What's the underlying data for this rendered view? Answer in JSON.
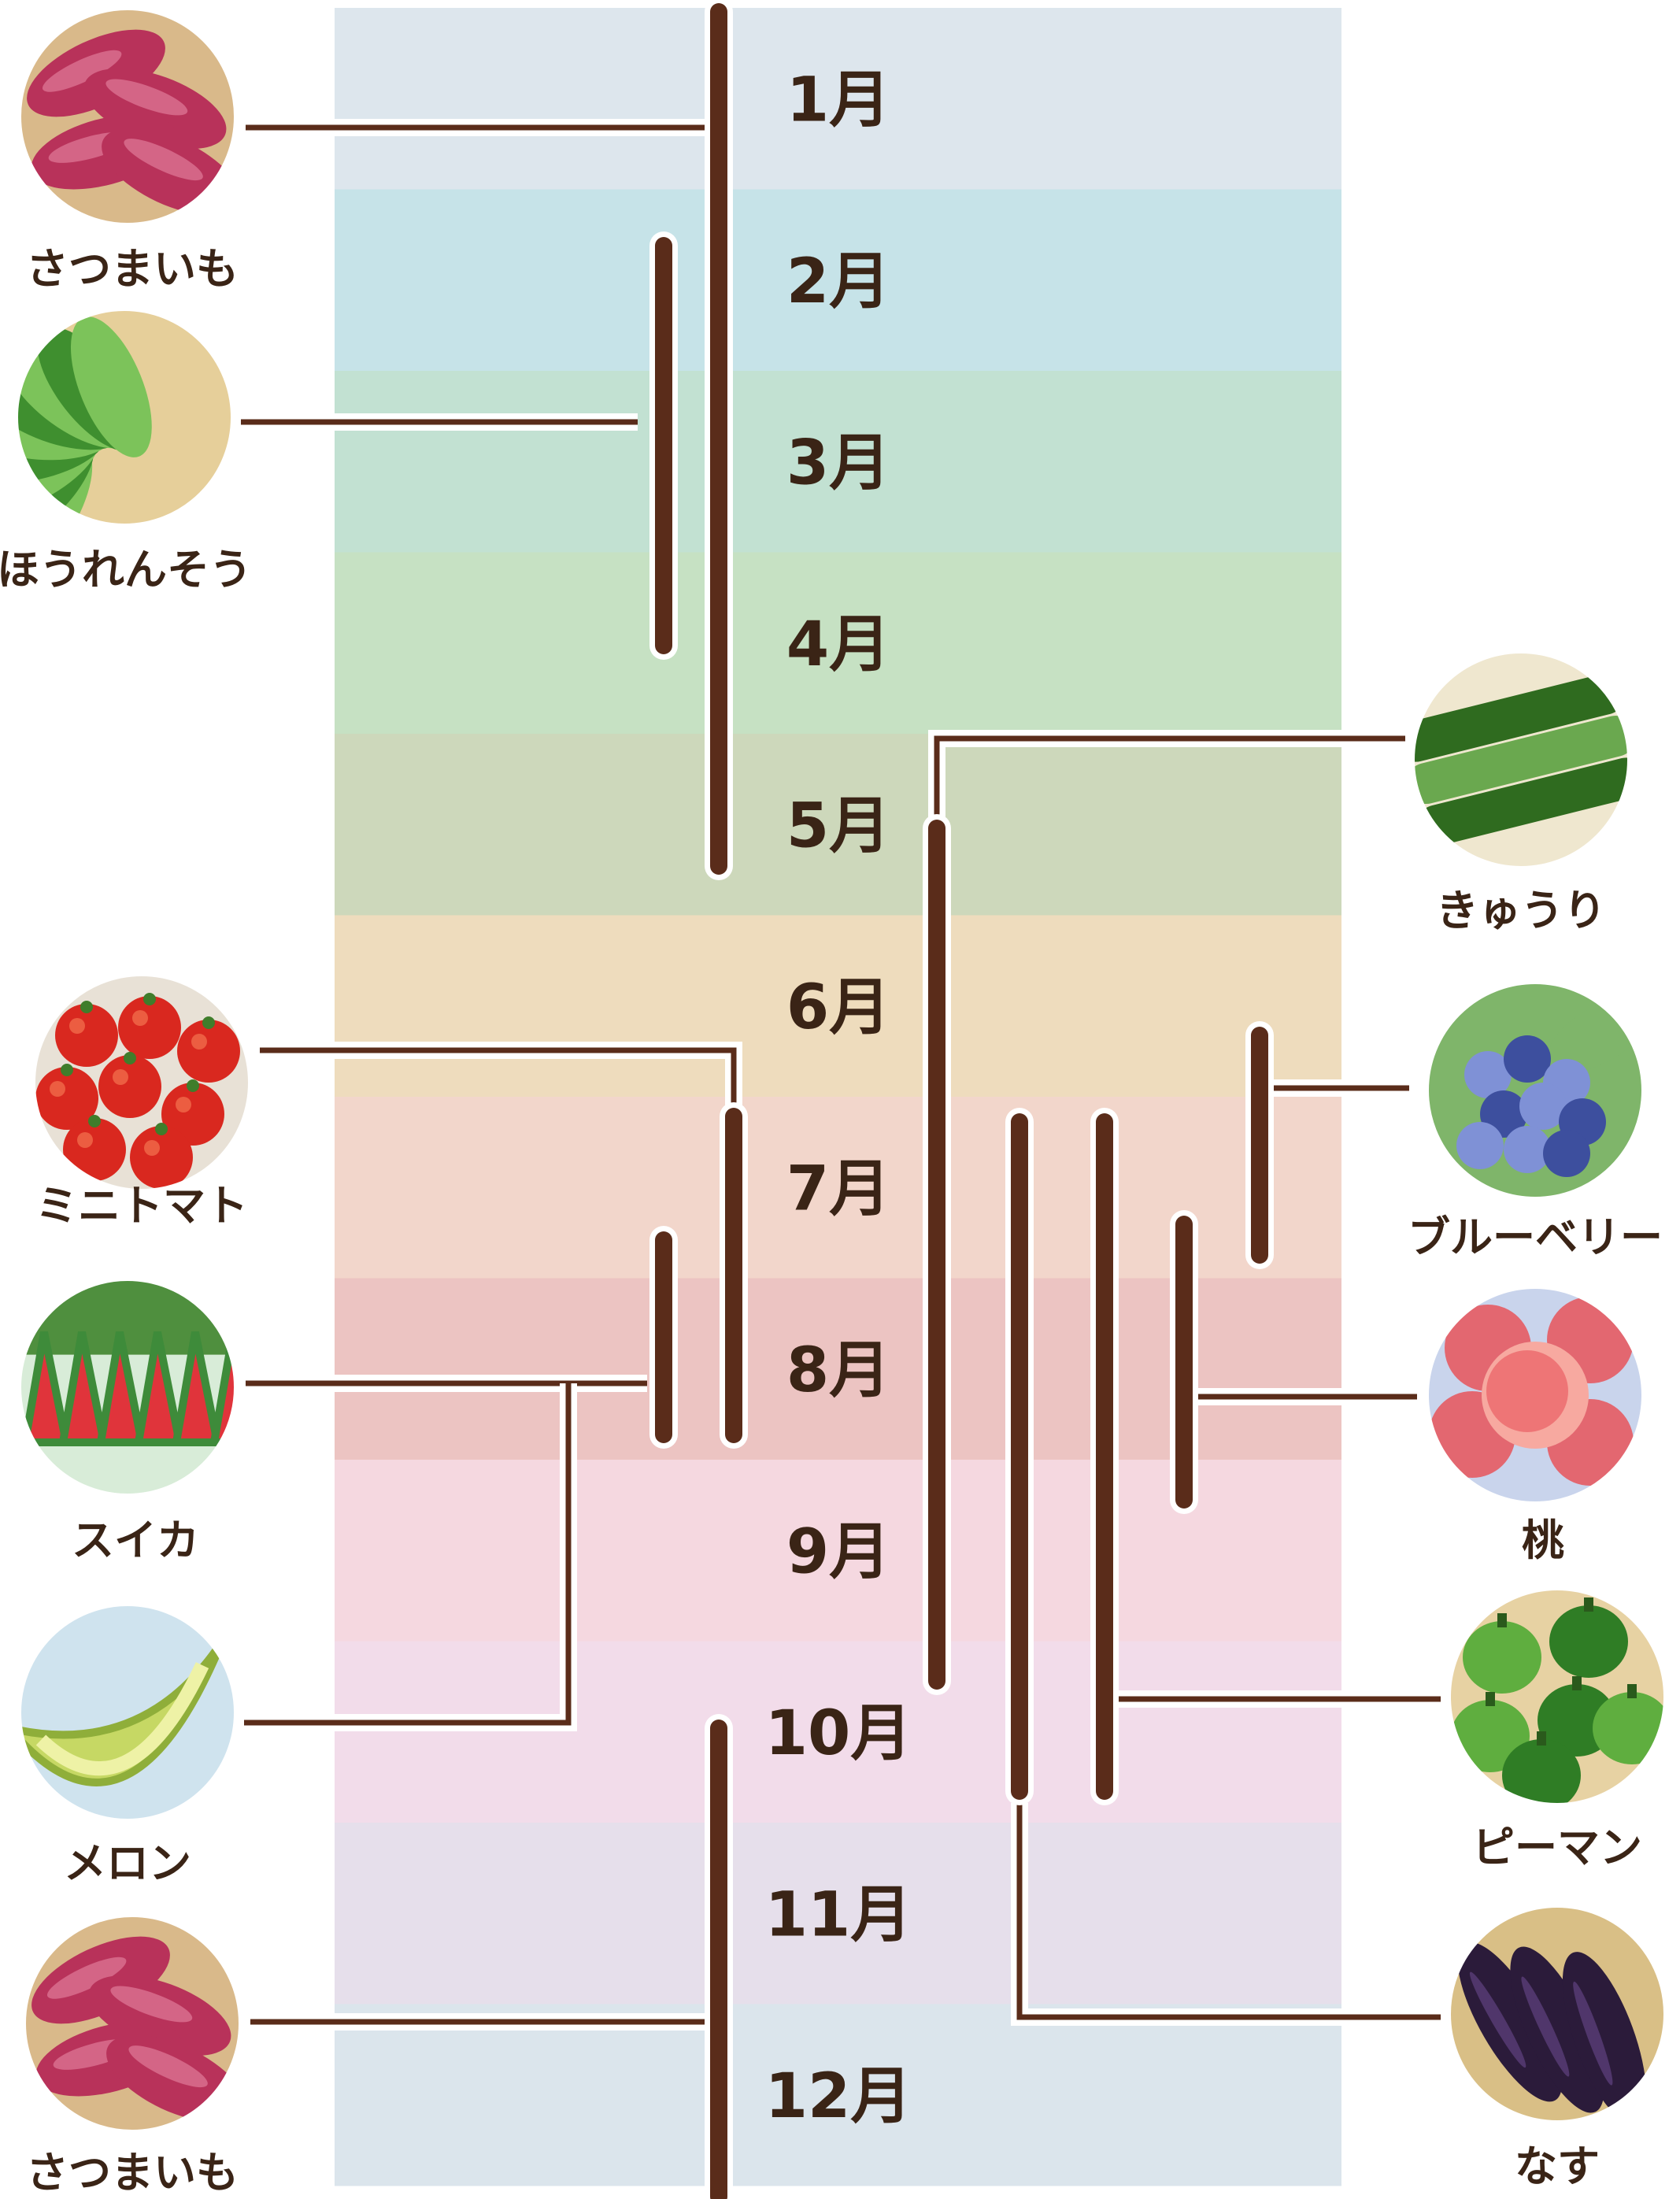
{
  "months": [
    {
      "label": "1月",
      "color": "#dde6ed"
    },
    {
      "label": "2月",
      "color": "#c6e3e8"
    },
    {
      "label": "3月",
      "color": "#c2e1d2"
    },
    {
      "label": "4月",
      "color": "#c6e1c3"
    },
    {
      "label": "5月",
      "color": "#cdd8bb"
    },
    {
      "label": "6月",
      "color": "#eedcbd"
    },
    {
      "label": "7月",
      "color": "#f2d6cb"
    },
    {
      "label": "8月",
      "color": "#ecc4c2"
    },
    {
      "label": "9月",
      "color": "#f5d8e0"
    },
    {
      "label": "10月",
      "color": "#f2dcea"
    },
    {
      "label": "11月",
      "color": "#e6dfeb"
    },
    {
      "label": "12月",
      "color": "#dbe5ec"
    }
  ],
  "produce": [
    {
      "id": "sweet-potato-top",
      "label": "さつまいも",
      "icon": "sweet-potato-icon",
      "side": "left",
      "season_start": 1,
      "season_end": 5,
      "colors": [
        "#b8325a",
        "#e07a98",
        "#d9b98a"
      ]
    },
    {
      "id": "spinach",
      "label": "ほうれんそう",
      "icon": "spinach-icon",
      "side": "left",
      "season_start": 2,
      "season_end": 4,
      "colors": [
        "#3f8f2f",
        "#7cc35a",
        "#e6cf9a"
      ]
    },
    {
      "id": "cucumber",
      "label": "きゅうり",
      "icon": "cucumber-icon",
      "side": "right",
      "season_start": 5,
      "season_end": 9,
      "colors": [
        "#2f6b1f",
        "#6aa84f",
        "#efe7cf"
      ]
    },
    {
      "id": "cherry-tomato",
      "label": "ミニトマト",
      "icon": "tomato-icon",
      "side": "left",
      "season_start": 7,
      "season_end": 8,
      "colors": [
        "#d9281f",
        "#f06a4a",
        "#e8e1d6"
      ]
    },
    {
      "id": "blueberry",
      "label": "ブルーベリー",
      "icon": "blueberry-icon",
      "side": "right",
      "season_start": 6,
      "season_end": 7,
      "colors": [
        "#3d4f9e",
        "#7f91d6",
        "#7fb56a"
      ]
    },
    {
      "id": "watermelon",
      "label": "スイカ",
      "icon": "watermelon-icon",
      "side": "left",
      "season_start": 7,
      "season_end": 8,
      "colors": [
        "#e0343b",
        "#3e8b3a",
        "#d8ecd8"
      ]
    },
    {
      "id": "peach",
      "label": "桃",
      "icon": "peach-icon",
      "side": "right",
      "season_start": 7,
      "season_end": 9,
      "colors": [
        "#e8545a",
        "#f7a9a0",
        "#c9d4ec"
      ]
    },
    {
      "id": "melon",
      "label": "メロン",
      "icon": "melon-icon",
      "side": "left",
      "season_start": 7,
      "season_end": 8,
      "colors": [
        "#c6d864",
        "#eef2a6",
        "#cfe3ee"
      ]
    },
    {
      "id": "green-pepper",
      "label": "ピーマン",
      "icon": "green-pepper-icon",
      "side": "right",
      "season_start": 7,
      "season_end": 10,
      "colors": [
        "#2f7d25",
        "#5fae3f",
        "#e7d2a3"
      ]
    },
    {
      "id": "sweet-potato-bottom",
      "label": "さつまいも",
      "icon": "sweet-potato-icon",
      "side": "left",
      "season_start": 10,
      "season_end": 12,
      "colors": [
        "#b8325a",
        "#e07a98",
        "#d9b98a"
      ]
    },
    {
      "id": "eggplant",
      "label": "なす",
      "icon": "eggplant-icon",
      "side": "right",
      "season_start": 7,
      "season_end": 10,
      "colors": [
        "#2b1b3a",
        "#5a3d78",
        "#d9bf86"
      ]
    }
  ],
  "colors": {
    "line": "#5a2c1a",
    "text": "#3a2416"
  }
}
